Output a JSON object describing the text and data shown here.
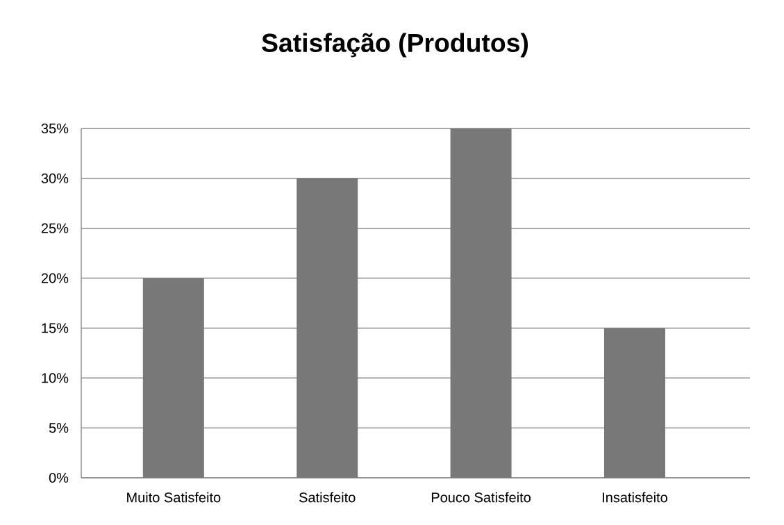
{
  "chart_data": {
    "type": "bar",
    "title": "Satisfação (Produtos)",
    "categories": [
      "Muito Satisfeito",
      "Satisfeito",
      "Pouco Satisfeito",
      "Insatisfeito"
    ],
    "values": [
      20,
      30,
      35,
      15
    ],
    "color": "#787878",
    "ylim": [
      0,
      35
    ],
    "yticks": [
      {
        "value": 0,
        "label": "0%"
      },
      {
        "value": 5,
        "label": "5%"
      },
      {
        "value": 10,
        "label": "10%"
      },
      {
        "value": 15,
        "label": "15%"
      },
      {
        "value": 20,
        "label": "20%"
      },
      {
        "value": 25,
        "label": "25%"
      },
      {
        "value": 30,
        "label": "30%"
      },
      {
        "value": 35,
        "label": "35%"
      }
    ],
    "grid": "y"
  }
}
